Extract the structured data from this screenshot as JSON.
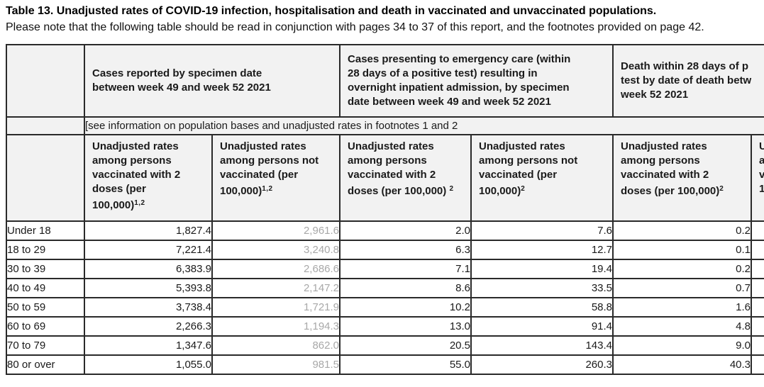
{
  "page": {
    "title": "Table 13. Unadjusted rates of COVID-19 infection, hospitalisation and death in vaccinated and unvaccinated populations.",
    "subtitle": "Please note that the following table should be read in conjunction with pages 34 to 37 of this report, and the footnotes provided on page 42."
  },
  "colors": {
    "muted_value": "#a8a8a8",
    "header_bg": "#f2f2f2",
    "border": "#2a2a2a"
  },
  "table": {
    "group_headers": [
      {
        "name": "cases-reported",
        "lines": [
          "Cases reported by specimen date",
          "between week 49 and week 52 2021"
        ]
      },
      {
        "name": "emergency-care",
        "lines": [
          "Cases presenting to emergency care (within",
          "28 days of a positive test) resulting in",
          "overnight inpatient admission, by specimen",
          "date between week 49 and week 52 2021"
        ]
      },
      {
        "name": "death-within-28-days",
        "lines": [
          "Death within 28 days of p",
          "test by date of death betw",
          "week 52 2021"
        ]
      }
    ],
    "note": "[see information on population bases and unadjusted rates in footnotes 1 and 2",
    "column_headers": [
      {
        "lines": [
          "Unadjusted rates",
          "among persons",
          "vaccinated with 2",
          "doses (per",
          "100,000)"
        ],
        "sup": "1,2"
      },
      {
        "lines": [
          "Unadjusted rates",
          "among persons not",
          "vaccinated (per",
          "100,000)"
        ],
        "sup": "1,2"
      },
      {
        "lines": [
          "Unadjusted rates",
          "among persons",
          "vaccinated with 2",
          "doses (per 100,000) "
        ],
        "sup": "2"
      },
      {
        "lines": [
          "Unadjusted  rates",
          "among persons not",
          "vaccinated (per",
          "100,000)"
        ],
        "sup": "2"
      },
      {
        "lines": [
          "Unadjusted rates",
          "among persons",
          "vaccinated with 2",
          "doses (per 100,000)"
        ],
        "sup": "2"
      },
      {
        "lines": [
          "Un",
          "am",
          "va",
          "10"
        ],
        "sup": ""
      }
    ],
    "rows": [
      {
        "label": "Under 18",
        "values": [
          "1,827.4",
          "2,961.6",
          "2.0",
          "7.6",
          "0.2",
          ""
        ]
      },
      {
        "label": "18 to 29",
        "values": [
          "7,221.4",
          "3,240.8",
          "6.3",
          "12.7",
          "0.1",
          ""
        ]
      },
      {
        "label": "30 to 39",
        "values": [
          "6,383.9",
          "2,686.6",
          "7.1",
          "19.4",
          "0.2",
          ""
        ]
      },
      {
        "label": "40 to 49",
        "values": [
          "5,393.8",
          "2,147.2",
          "8.6",
          "33.5",
          "0.7",
          ""
        ]
      },
      {
        "label": "50 to 59",
        "values": [
          "3,738.4",
          "1,721.9",
          "10.2",
          "58.8",
          "1.6",
          ""
        ]
      },
      {
        "label": "60 to 69",
        "values": [
          "2,266.3",
          "1,194.3",
          "13.0",
          "91.4",
          "4.8",
          ""
        ]
      },
      {
        "label": "70 to 79",
        "values": [
          "1,347.6",
          "862.0",
          "20.5",
          "143.4",
          "9.0",
          ""
        ]
      },
      {
        "label": "80 or over",
        "values": [
          "1,055.0",
          "981.5",
          "55.0",
          "260.3",
          "40.3",
          ""
        ]
      }
    ]
  }
}
